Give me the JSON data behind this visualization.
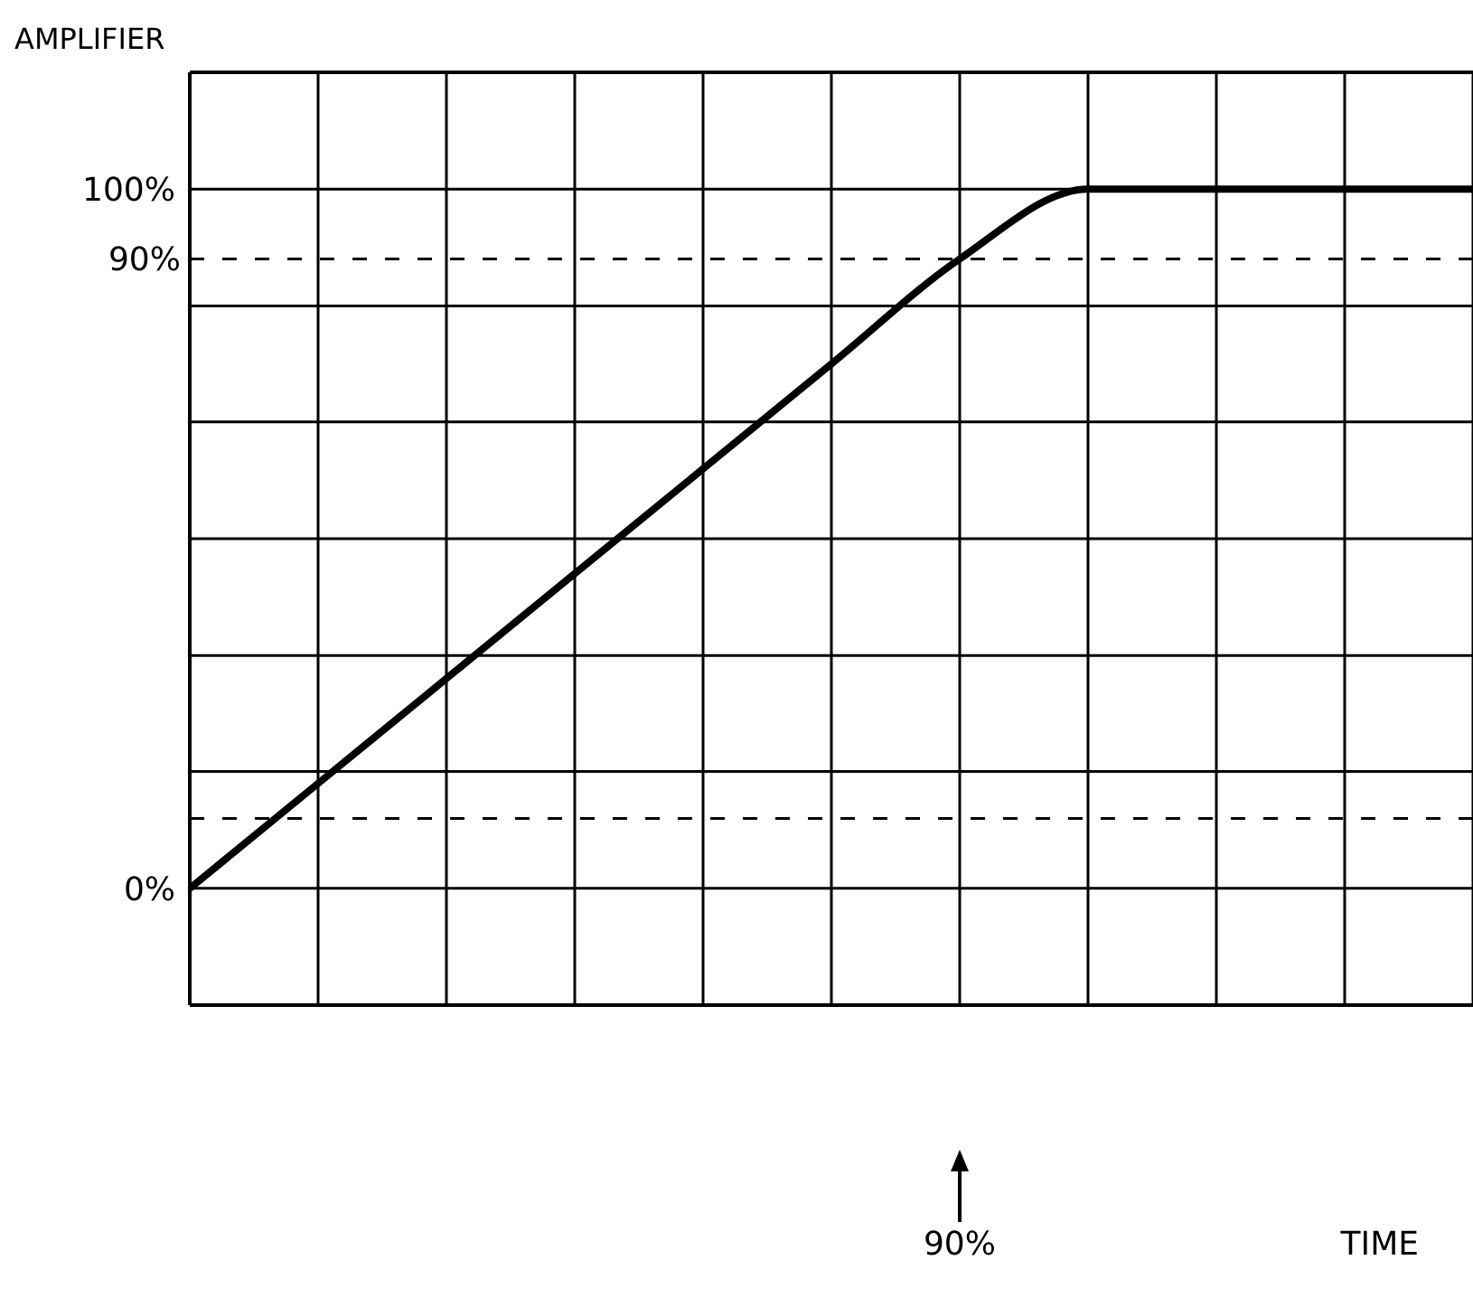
{
  "chart_data": {
    "type": "line",
    "ylabel": "AMPLIFIER",
    "categories": [
      null,
      null,
      null,
      null,
      null,
      null,
      null,
      null,
      null,
      null,
      null
    ],
    "series": [
      {
        "color": "#000000",
        "values": [
          0,
          15,
          30,
          45,
          60,
          75,
          90,
          100,
          100,
          100,
          100
        ]
      }
    ],
    "ylim": [
      -16.7,
      116.7
    ],
    "yticks": [
      {
        "value": 0,
        "label": "0%"
      },
      {
        "value": 16.7,
        "label": null
      },
      {
        "value": 33.3,
        "label": null
      },
      {
        "value": 50,
        "label": null
      },
      {
        "value": 66.7,
        "label": null
      },
      {
        "value": 83.3,
        "label": null
      },
      {
        "value": 100,
        "label": "100%"
      }
    ],
    "ref_lines": [
      {
        "axis": "y",
        "value": 90,
        "label": "90%",
        "line_style": "dashed",
        "color": "#000000"
      },
      {
        "axis": "y",
        "value": 10,
        "label": null,
        "line_style": "dashed",
        "color": "#000000"
      }
    ],
    "annotations": [
      "90%",
      "TIME"
    ],
    "grid": true,
    "marker": "none",
    "line_style": "solid",
    "tick_labels": "y"
  }
}
